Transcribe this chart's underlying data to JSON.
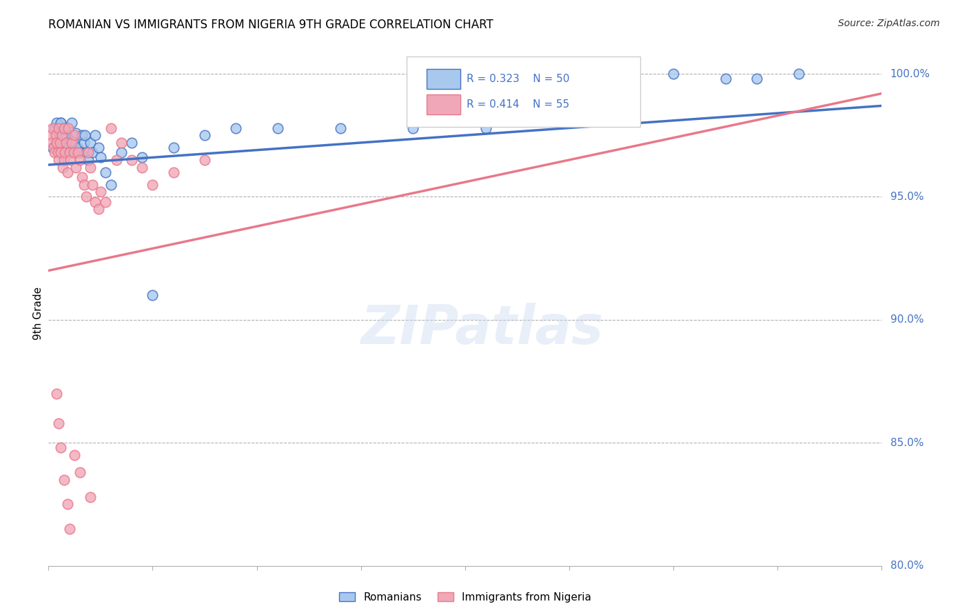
{
  "title": "ROMANIAN VS IMMIGRANTS FROM NIGERIA 9TH GRADE CORRELATION CHART",
  "source": "Source: ZipAtlas.com",
  "ylabel": "9th Grade",
  "legend_label1": "Romanians",
  "legend_label2": "Immigrants from Nigeria",
  "R_blue": 0.323,
  "N_blue": 50,
  "R_pink": 0.414,
  "N_pink": 55,
  "color_blue": "#A8C8EE",
  "color_pink": "#F0A8B8",
  "color_blue_line": "#4472C4",
  "color_pink_line": "#E8788A",
  "watermark": "ZIPatlas",
  "xmin": 0.0,
  "xmax": 0.8,
  "ymin": 0.8,
  "ymax": 1.005,
  "blue_x": [
    0.004,
    0.006,
    0.008,
    0.01,
    0.012,
    0.013,
    0.014,
    0.015,
    0.016,
    0.018,
    0.02,
    0.022,
    0.024,
    0.026,
    0.028,
    0.03,
    0.032,
    0.034,
    0.036,
    0.038,
    0.04,
    0.042,
    0.045,
    0.048,
    0.05,
    0.055,
    0.06,
    0.07,
    0.08,
    0.09,
    0.1,
    0.12,
    0.15,
    0.18,
    0.22,
    0.28,
    0.35,
    0.42,
    0.5,
    0.53,
    0.55,
    0.6,
    0.65,
    0.68,
    0.72,
    0.008,
    0.012,
    0.016,
    0.022,
    0.035
  ],
  "blue_y": [
    0.97,
    0.978,
    0.972,
    0.976,
    0.98,
    0.975,
    0.972,
    0.978,
    0.974,
    0.97,
    0.968,
    0.975,
    0.972,
    0.976,
    0.97,
    0.968,
    0.975,
    0.972,
    0.968,
    0.965,
    0.972,
    0.968,
    0.975,
    0.97,
    0.966,
    0.96,
    0.955,
    0.968,
    0.972,
    0.966,
    0.91,
    0.97,
    0.975,
    0.978,
    0.978,
    0.978,
    0.978,
    0.978,
    1.0,
    1.0,
    0.998,
    1.0,
    0.998,
    0.998,
    1.0,
    0.98,
    0.98,
    0.978,
    0.98,
    0.975
  ],
  "pink_x": [
    0.002,
    0.003,
    0.004,
    0.005,
    0.006,
    0.007,
    0.008,
    0.009,
    0.01,
    0.01,
    0.011,
    0.012,
    0.013,
    0.014,
    0.015,
    0.015,
    0.016,
    0.017,
    0.018,
    0.019,
    0.02,
    0.021,
    0.022,
    0.024,
    0.025,
    0.026,
    0.028,
    0.03,
    0.032,
    0.034,
    0.036,
    0.038,
    0.04,
    0.042,
    0.045,
    0.048,
    0.05,
    0.055,
    0.06,
    0.065,
    0.07,
    0.08,
    0.09,
    0.1,
    0.12,
    0.15,
    0.008,
    0.01,
    0.012,
    0.015,
    0.018,
    0.02,
    0.025,
    0.03,
    0.04
  ],
  "pink_y": [
    0.975,
    0.972,
    0.978,
    0.97,
    0.968,
    0.975,
    0.972,
    0.968,
    0.978,
    0.965,
    0.972,
    0.968,
    0.975,
    0.962,
    0.978,
    0.965,
    0.968,
    0.972,
    0.96,
    0.978,
    0.968,
    0.965,
    0.972,
    0.968,
    0.975,
    0.962,
    0.968,
    0.965,
    0.958,
    0.955,
    0.95,
    0.968,
    0.962,
    0.955,
    0.948,
    0.945,
    0.952,
    0.948,
    0.978,
    0.965,
    0.972,
    0.965,
    0.962,
    0.955,
    0.96,
    0.965,
    0.87,
    0.858,
    0.848,
    0.835,
    0.825,
    0.815,
    0.845,
    0.838,
    0.828
  ]
}
